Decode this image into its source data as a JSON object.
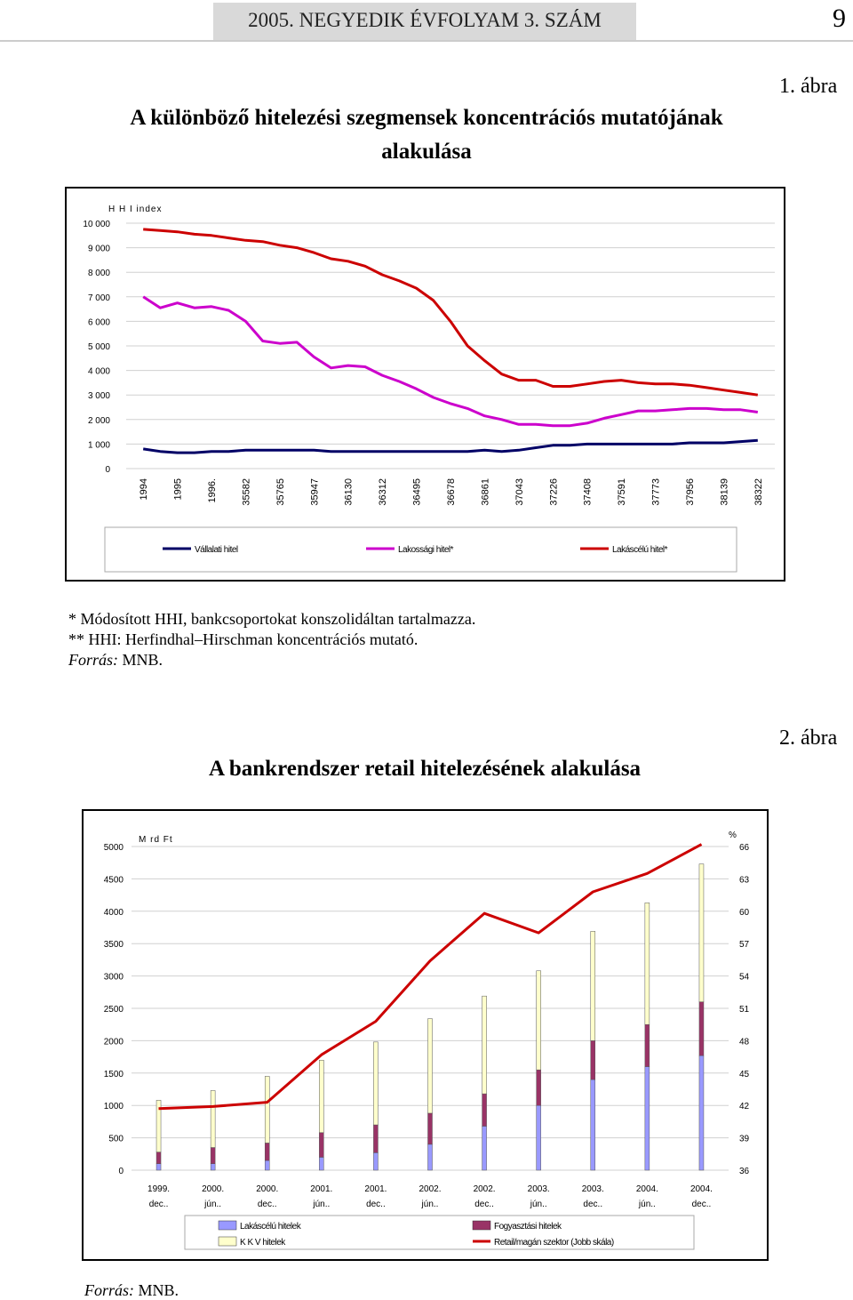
{
  "header": {
    "journal": "2005. NEGYEDIK ÉVFOLYAM 3. SZÁM",
    "page": "9"
  },
  "figure1": {
    "label": "1. ábra",
    "title_line1": "A különböző hitelezési szegmensek koncentrációs mutatójának",
    "title_line2": "alakulása",
    "notes": [
      "* Módosított HHI, bankcsoportokat konszolidáltan tartalmazza.",
      "** HHI: Herfindhal–Hirschman koncentrációs mutató."
    ],
    "source_label": "Forrás:",
    "source_value": " MNB."
  },
  "figure2": {
    "label": "2. ábra",
    "title": "A bankrendszer retail hitelezésének alakulása",
    "source_label": "Forrás:",
    "source_value": " MNB."
  },
  "chart_data": [
    {
      "type": "line",
      "ylabel": "H H I index",
      "ylim": [
        0,
        10000
      ],
      "yticks": [
        "0",
        "1 000",
        "2 000",
        "3 000",
        "4 000",
        "5 000",
        "6 000",
        "7 000",
        "8 000",
        "9 000",
        "10 000"
      ],
      "grid": true,
      "legend_position": "bottom",
      "categories": [
        "1994",
        "1995",
        "1996.",
        "35582",
        "35765",
        "35947",
        "36130",
        "36312",
        "36495",
        "36678",
        "36861",
        "37043",
        "37226",
        "37408",
        "37591",
        "37773",
        "37956",
        "38139",
        "38322"
      ],
      "colors": {
        "vallalati": "#000066",
        "lakossagi": "#cc00cc",
        "lakascelu": "#cc0000"
      },
      "series": [
        {
          "name": "Vállalati hitel",
          "key": "vallalati",
          "x": [
            0,
            0.5,
            1,
            1.5,
            2,
            2.5,
            3,
            3.5,
            4,
            4.5,
            5,
            5.5,
            6,
            6.5,
            7,
            7.5,
            8,
            8.5,
            9,
            9.5,
            10,
            10.5,
            11,
            11.5,
            12,
            12.5,
            13,
            13.5,
            14,
            14.5,
            15,
            15.5,
            16,
            16.5,
            17,
            17.5,
            18
          ],
          "values": [
            800,
            700,
            650,
            650,
            700,
            700,
            750,
            750,
            750,
            750,
            750,
            700,
            700,
            700,
            700,
            700,
            700,
            700,
            700,
            700,
            750,
            700,
            750,
            850,
            950,
            950,
            1000,
            1000,
            1000,
            1000,
            1000,
            1000,
            1050,
            1050,
            1050,
            1100,
            1150
          ]
        },
        {
          "name": "Lakossági hitel*",
          "key": "lakossagi",
          "x": [
            0,
            0.5,
            1,
            1.5,
            2,
            2.5,
            3,
            3.5,
            4,
            4.5,
            5,
            5.5,
            6,
            6.5,
            7,
            7.5,
            8,
            8.5,
            9,
            9.5,
            10,
            10.5,
            11,
            11.5,
            12,
            12.5,
            13,
            13.5,
            14,
            14.5,
            15,
            15.5,
            16,
            16.5,
            17,
            17.5,
            18
          ],
          "values": [
            7000,
            6550,
            6750,
            6550,
            6600,
            6450,
            6000,
            5200,
            5100,
            5150,
            4550,
            4100,
            4200,
            4150,
            3800,
            3550,
            3250,
            2900,
            2650,
            2450,
            2150,
            2000,
            1800,
            1800,
            1750,
            1750,
            1850,
            2050,
            2200,
            2350,
            2350,
            2400,
            2450,
            2450,
            2400,
            2400,
            2300
          ]
        },
        {
          "name": "Lakáscélú hitel*",
          "key": "lakascelu",
          "x": [
            0,
            0.5,
            1,
            1.5,
            2,
            2.5,
            3,
            3.5,
            4,
            4.5,
            5,
            5.5,
            6,
            6.5,
            7,
            7.5,
            8,
            8.5,
            9,
            9.5,
            10,
            10.5,
            11,
            11.5,
            12,
            12.5,
            13,
            13.5,
            14,
            14.5,
            15,
            15.5,
            16,
            16.5,
            17,
            17.5,
            18
          ],
          "values": [
            9750,
            9700,
            9650,
            9550,
            9500,
            9400,
            9300,
            9250,
            9100,
            9000,
            8800,
            8550,
            8450,
            8250,
            7900,
            7650,
            7350,
            6850,
            6000,
            5000,
            4400,
            3850,
            3600,
            3600,
            3350,
            3350,
            3450,
            3550,
            3600,
            3500,
            3450,
            3450,
            3400,
            3300,
            3200,
            3100,
            3000
          ]
        }
      ]
    },
    {
      "type": "bar",
      "stacked": true,
      "ylabel_left": "M rd Ft",
      "ylabel_right": "%",
      "ylim_left": [
        0,
        5000
      ],
      "ylim_right": [
        36,
        66
      ],
      "yticks_left": [
        "0",
        "500",
        "1000",
        "1500",
        "2000",
        "2500",
        "3000",
        "3500",
        "4000",
        "4500",
        "5000"
      ],
      "yticks_right": [
        "36",
        "39",
        "42",
        "45",
        "48",
        "51",
        "54",
        "57",
        "60",
        "63",
        "66"
      ],
      "grid": true,
      "legend_position": "bottom",
      "categories": [
        {
          "line1": "1999.",
          "line2": "dec.."
        },
        {
          "line1": "2000.",
          "line2": "jún.."
        },
        {
          "line1": "2000.",
          "line2": "dec.."
        },
        {
          "line1": "2001.",
          "line2": "jún.."
        },
        {
          "line1": "2001.",
          "line2": "dec.."
        },
        {
          "line1": "2002.",
          "line2": "jún.."
        },
        {
          "line1": "2002.",
          "line2": "dec.."
        },
        {
          "line1": "2003.",
          "line2": "jún.."
        },
        {
          "line1": "2003.",
          "line2": "dec.."
        },
        {
          "line1": "2004.",
          "line2": "jún.."
        },
        {
          "line1": "2004.",
          "line2": "dec.."
        }
      ],
      "colors": {
        "lakascelu": "#9999ff",
        "fogyasztasi": "#993366",
        "kkv": "#ffffcc",
        "share": "#cc0000"
      },
      "series": [
        {
          "name": "Lakáscélú hitelek",
          "key": "lakascelu",
          "values": [
            100,
            100,
            150,
            200,
            270,
            400,
            680,
            1000,
            1400,
            1600,
            1770
          ]
        },
        {
          "name": "Fogyasztási hitelek",
          "key": "fogyasztasi",
          "values": [
            180,
            250,
            270,
            380,
            430,
            480,
            500,
            550,
            600,
            650,
            830
          ]
        },
        {
          "name": "K K V hitelek",
          "key": "kkv",
          "values": [
            800,
            880,
            1030,
            1120,
            1280,
            1460,
            1510,
            1530,
            1690,
            1880,
            2130
          ]
        }
      ],
      "line_series": {
        "name": "Retail/magán szektor (Jobb skála)",
        "key": "share",
        "values": [
          41.7,
          41.9,
          42.3,
          46.7,
          49.8,
          55.4,
          59.8,
          58.0,
          61.8,
          63.5,
          66.2
        ]
      }
    }
  ]
}
